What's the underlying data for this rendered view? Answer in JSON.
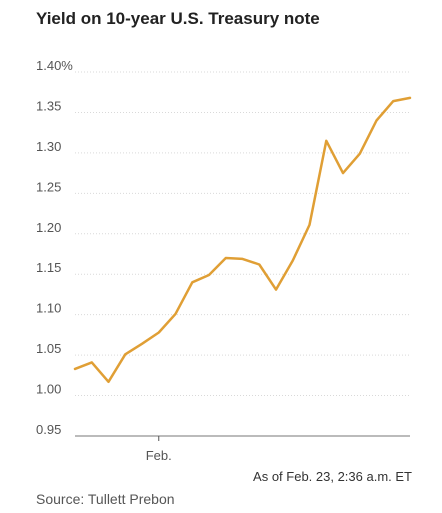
{
  "chart_data": {
    "type": "line",
    "title": "Yield on 10-year U.S. Treasury note",
    "y_ticks": [
      "1.40%",
      "1.35",
      "1.30",
      "1.25",
      "1.20",
      "1.15",
      "1.10",
      "1.05",
      "1.00",
      "0.95"
    ],
    "ylim": [
      0.95,
      1.4
    ],
    "x_tick": {
      "label": "Feb.",
      "index": 5
    },
    "grid": true,
    "series": [
      {
        "values": [
          1.033,
          1.041,
          1.017,
          1.051,
          1.064,
          1.078,
          1.101,
          1.14,
          1.149,
          1.17,
          1.169,
          1.162,
          1.131,
          1.167,
          1.211,
          1.315,
          1.275,
          1.299,
          1.34,
          1.364,
          1.368
        ],
        "color": "#e09f35"
      }
    ],
    "note": "As of Feb. 23, 2:36 a.m. ET",
    "source": "Source: Tullett Prebon"
  }
}
